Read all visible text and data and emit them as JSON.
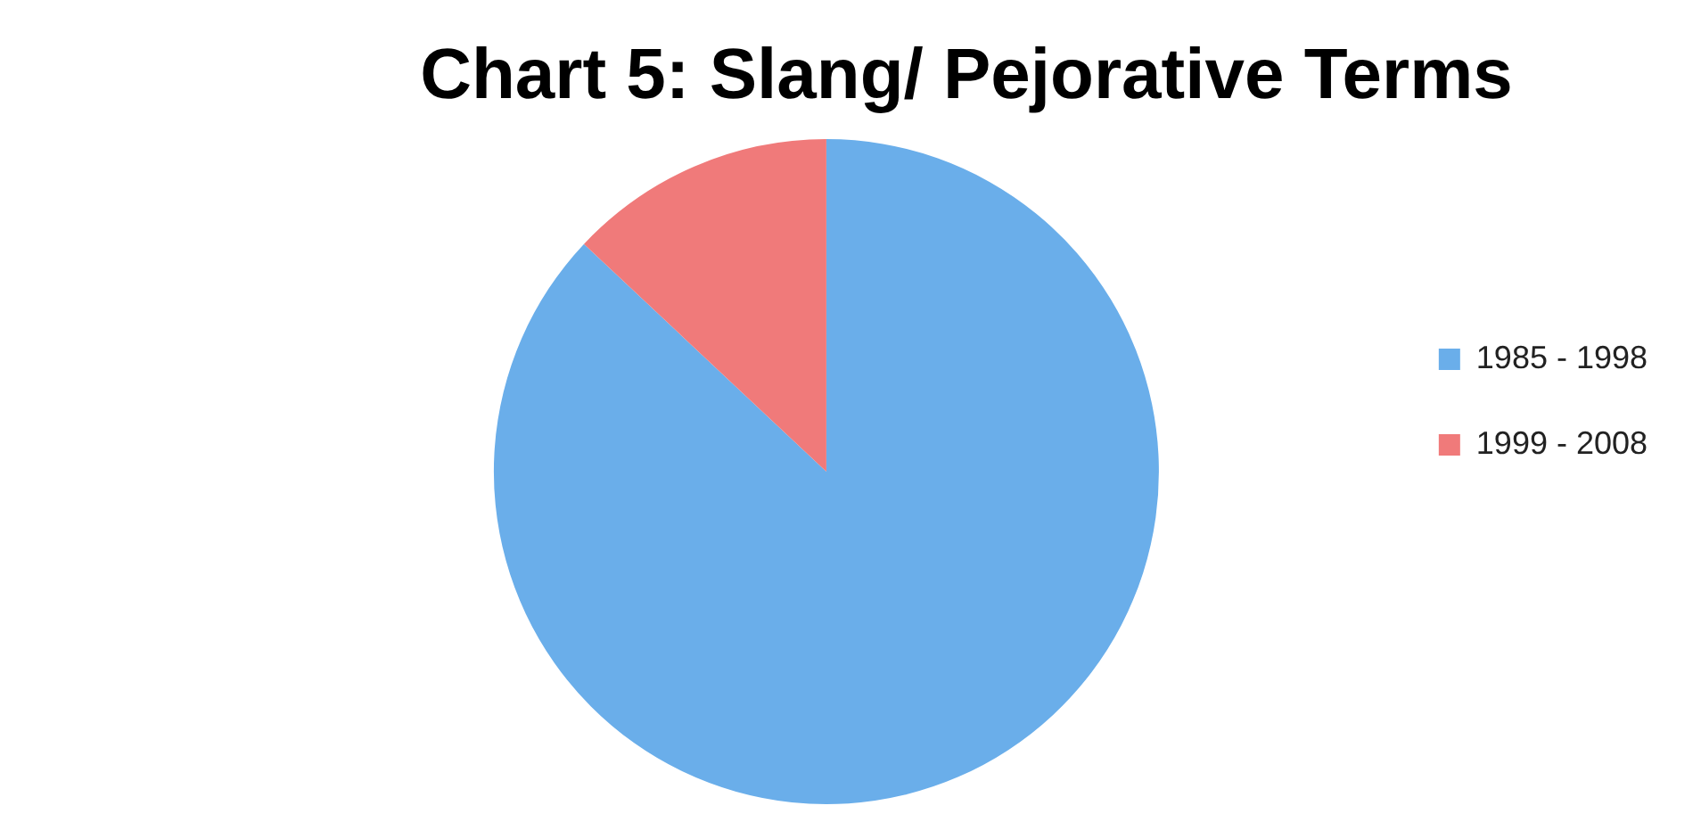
{
  "chart_data": {
    "type": "pie",
    "title": "Chart 5: Slang/ Pejorative Terms",
    "categories": [
      "1985 - 1998",
      "1999 - 2008"
    ],
    "values": [
      87,
      13
    ],
    "colors": [
      "#6aaeea",
      "#f07a7a"
    ],
    "legend": "right"
  }
}
